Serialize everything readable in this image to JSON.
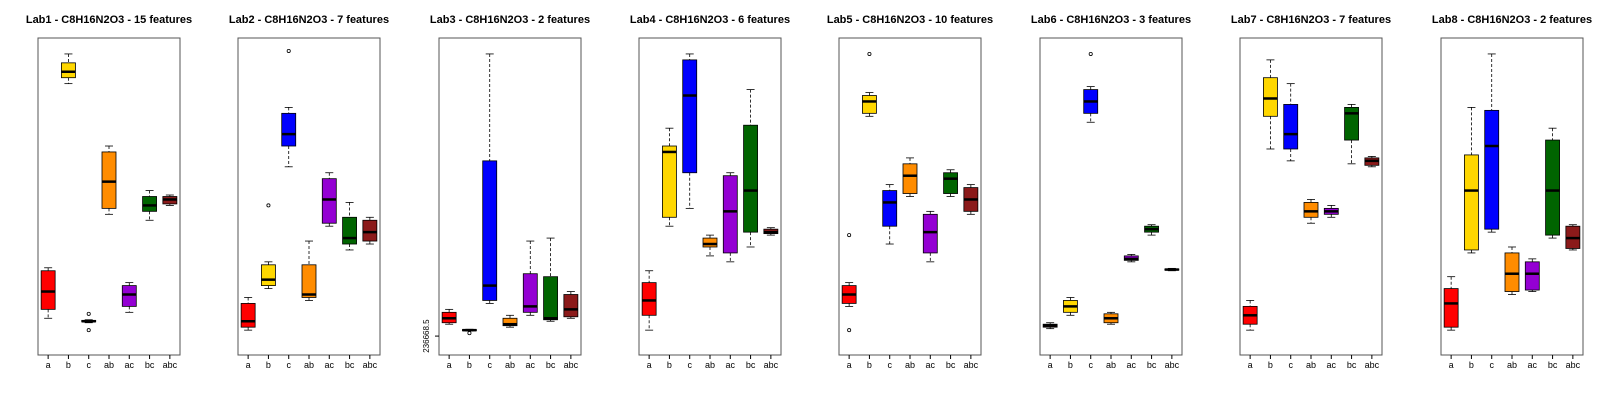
{
  "figure": {
    "categories": [
      "a",
      "b",
      "c",
      "ab",
      "ac",
      "bc",
      "abc"
    ],
    "colors": {
      "a": "#ff0000",
      "b": "#ffd700",
      "c": "#0000ff",
      "ab": "#ff8c00",
      "ac": "#9400d3",
      "bc": "#006400",
      "abc": "#8b1a1a"
    }
  },
  "chart_data": [
    {
      "type": "boxplot",
      "title": "Lab1 - C8H16N2O3 - 15 features",
      "categories": [
        "a",
        "b",
        "c",
        "ab",
        "ac",
        "bc",
        "abc"
      ],
      "ylim": [
        0,
        100
      ],
      "y_tick_labels": [],
      "boxes": [
        {
          "whislo": 9,
          "q1": 12,
          "med": 18,
          "q3": 25,
          "whishi": 26,
          "outliers": []
        },
        {
          "whislo": 88,
          "q1": 90,
          "med": 92,
          "q3": 95,
          "whishi": 98,
          "outliers": []
        },
        {
          "whislo": 7.5,
          "q1": 7.8,
          "med": 8,
          "q3": 8.3,
          "whishi": 8.5,
          "outliers": [
            10.5,
            5
          ]
        },
        {
          "whislo": 44,
          "q1": 46,
          "med": 55,
          "q3": 65,
          "whishi": 67,
          "outliers": []
        },
        {
          "whislo": 11,
          "q1": 13,
          "med": 17,
          "q3": 20,
          "whishi": 21,
          "outliers": []
        },
        {
          "whislo": 42,
          "q1": 45,
          "med": 47,
          "q3": 50,
          "whishi": 52,
          "outliers": []
        },
        {
          "whislo": 47,
          "q1": 47.5,
          "med": 49,
          "q3": 50,
          "whishi": 50.5,
          "outliers": []
        }
      ]
    },
    {
      "type": "boxplot",
      "title": "Lab2 - C8H16N2O3 - 7 features",
      "categories": [
        "a",
        "b",
        "c",
        "ab",
        "ac",
        "bc",
        "abc"
      ],
      "ylim": [
        0,
        100
      ],
      "y_tick_labels": [],
      "boxes": [
        {
          "whislo": 5,
          "q1": 6,
          "med": 8,
          "q3": 14,
          "whishi": 16,
          "outliers": []
        },
        {
          "whislo": 19,
          "q1": 20,
          "med": 22,
          "q3": 27,
          "whishi": 28,
          "outliers": [
            47
          ]
        },
        {
          "whislo": 60,
          "q1": 67,
          "med": 71,
          "q3": 78,
          "whishi": 80,
          "outliers": [
            99
          ]
        },
        {
          "whislo": 15,
          "q1": 16,
          "med": 17,
          "q3": 27,
          "whishi": 35,
          "outliers": []
        },
        {
          "whislo": 40,
          "q1": 41,
          "med": 49,
          "q3": 56,
          "whishi": 58,
          "outliers": []
        },
        {
          "whislo": 32,
          "q1": 34,
          "med": 36,
          "q3": 43,
          "whishi": 48,
          "outliers": []
        },
        {
          "whislo": 34,
          "q1": 35,
          "med": 38,
          "q3": 42,
          "whishi": 43,
          "outliers": []
        }
      ]
    },
    {
      "type": "boxplot",
      "title": "Lab3 - C8H16N2O3 - 2 features",
      "categories": [
        "a",
        "b",
        "c",
        "ab",
        "ac",
        "bc",
        "abc"
      ],
      "ylim": [
        0,
        100
      ],
      "y_tick_labels": [
        {
          "value": 3,
          "label": "236668.5"
        }
      ],
      "boxes": [
        {
          "whislo": 7,
          "q1": 7.5,
          "med": 9,
          "q3": 11,
          "whishi": 12,
          "outliers": []
        },
        {
          "whislo": 4.7,
          "q1": 4.8,
          "med": 5,
          "q3": 5.2,
          "whishi": 5.3,
          "outliers": [
            4
          ]
        },
        {
          "whislo": 14,
          "q1": 15,
          "med": 20,
          "q3": 62,
          "whishi": 98,
          "outliers": []
        },
        {
          "whislo": 6,
          "q1": 6.5,
          "med": 7,
          "q3": 9,
          "whishi": 10,
          "outliers": []
        },
        {
          "whislo": 10,
          "q1": 11,
          "med": 13,
          "q3": 24,
          "whishi": 35,
          "outliers": []
        },
        {
          "whislo": 8,
          "q1": 8.5,
          "med": 9,
          "q3": 23,
          "whishi": 36,
          "outliers": []
        },
        {
          "whislo": 9,
          "q1": 9.5,
          "med": 12,
          "q3": 17,
          "whishi": 18,
          "outliers": []
        }
      ]
    },
    {
      "type": "boxplot",
      "title": "Lab4 - C8H16N2O3 - 6 features",
      "categories": [
        "a",
        "b",
        "c",
        "ab",
        "ac",
        "bc",
        "abc"
      ],
      "ylim": [
        0,
        100
      ],
      "y_tick_labels": [],
      "boxes": [
        {
          "whislo": 5,
          "q1": 10,
          "med": 15,
          "q3": 21,
          "whishi": 25,
          "outliers": []
        },
        {
          "whislo": 40,
          "q1": 43,
          "med": 65,
          "q3": 67,
          "whishi": 73,
          "outliers": []
        },
        {
          "whislo": 46,
          "q1": 58,
          "med": 84,
          "q3": 96,
          "whishi": 98,
          "outliers": []
        },
        {
          "whislo": 30,
          "q1": 33,
          "med": 34,
          "q3": 36,
          "whishi": 37,
          "outliers": []
        },
        {
          "whislo": 28,
          "q1": 31,
          "med": 45,
          "q3": 57,
          "whishi": 58,
          "outliers": []
        },
        {
          "whislo": 33,
          "q1": 38,
          "med": 52,
          "q3": 74,
          "whishi": 86,
          "outliers": []
        },
        {
          "whislo": 37,
          "q1": 37.5,
          "med": 38,
          "q3": 39,
          "whishi": 39.5,
          "outliers": []
        }
      ]
    },
    {
      "type": "boxplot",
      "title": "Lab5 - C8H16N2O3 - 10 features",
      "categories": [
        "a",
        "b",
        "c",
        "ab",
        "ac",
        "bc",
        "abc"
      ],
      "ylim": [
        0,
        100
      ],
      "y_tick_labels": [],
      "boxes": [
        {
          "whislo": 13,
          "q1": 14,
          "med": 17,
          "q3": 20,
          "whishi": 21,
          "outliers": [
            37,
            5
          ]
        },
        {
          "whislo": 77,
          "q1": 78,
          "med": 82,
          "q3": 84,
          "whishi": 85,
          "outliers": [
            98
          ]
        },
        {
          "whislo": 34,
          "q1": 40,
          "med": 48,
          "q3": 52,
          "whishi": 54,
          "outliers": []
        },
        {
          "whislo": 50,
          "q1": 51,
          "med": 57,
          "q3": 61,
          "whishi": 63,
          "outliers": []
        },
        {
          "whislo": 28,
          "q1": 31,
          "med": 38,
          "q3": 44,
          "whishi": 45,
          "outliers": []
        },
        {
          "whislo": 50,
          "q1": 51,
          "med": 56,
          "q3": 58,
          "whishi": 59,
          "outliers": []
        },
        {
          "whislo": 44,
          "q1": 45,
          "med": 49,
          "q3": 53,
          "whishi": 54,
          "outliers": []
        }
      ]
    },
    {
      "type": "boxplot",
      "title": "Lab6 - C8H16N2O3 - 3 features",
      "categories": [
        "a",
        "b",
        "c",
        "ab",
        "ac",
        "bc",
        "abc"
      ],
      "ylim": [
        0,
        100
      ],
      "y_tick_labels": [],
      "boxes": [
        {
          "whislo": 5.5,
          "q1": 6,
          "med": 6.5,
          "q3": 7,
          "whishi": 7.5,
          "outliers": []
        },
        {
          "whislo": 10,
          "q1": 11,
          "med": 13,
          "q3": 15,
          "whishi": 16,
          "outliers": []
        },
        {
          "whislo": 75,
          "q1": 78,
          "med": 82,
          "q3": 86,
          "whishi": 87,
          "outliers": [
            98
          ]
        },
        {
          "whislo": 7,
          "q1": 7.5,
          "med": 9,
          "q3": 10.5,
          "whishi": 11,
          "outliers": []
        },
        {
          "whislo": 28,
          "q1": 28.5,
          "med": 29,
          "q3": 30,
          "whishi": 30.5,
          "outliers": []
        },
        {
          "whislo": 37,
          "q1": 38,
          "med": 39,
          "q3": 40,
          "whishi": 40.5,
          "outliers": []
        },
        {
          "whislo": 25,
          "q1": 25.2,
          "med": 25.4,
          "q3": 25.6,
          "whishi": 25.8,
          "outliers": []
        }
      ]
    },
    {
      "type": "boxplot",
      "title": "Lab7 - C8H16N2O3 - 7 features",
      "categories": [
        "a",
        "b",
        "c",
        "ab",
        "ac",
        "bc",
        "abc"
      ],
      "ylim": [
        0,
        100
      ],
      "y_tick_labels": [],
      "boxes": [
        {
          "whislo": 5,
          "q1": 7,
          "med": 10,
          "q3": 13,
          "whishi": 15,
          "outliers": []
        },
        {
          "whislo": 66,
          "q1": 77,
          "med": 83,
          "q3": 90,
          "whishi": 96,
          "outliers": []
        },
        {
          "whislo": 62,
          "q1": 66,
          "med": 71,
          "q3": 81,
          "whishi": 88,
          "outliers": []
        },
        {
          "whislo": 41,
          "q1": 43,
          "med": 45,
          "q3": 48,
          "whishi": 49,
          "outliers": []
        },
        {
          "whislo": 43,
          "q1": 44,
          "med": 45,
          "q3": 46,
          "whishi": 47,
          "outliers": []
        },
        {
          "whislo": 61,
          "q1": 69,
          "med": 78,
          "q3": 80,
          "whishi": 81,
          "outliers": []
        },
        {
          "whislo": 60,
          "q1": 60.5,
          "med": 62,
          "q3": 63,
          "whishi": 63.5,
          "outliers": []
        }
      ]
    },
    {
      "type": "boxplot",
      "title": "Lab8 - C8H16N2O3 - 2 features",
      "categories": [
        "a",
        "b",
        "c",
        "ab",
        "ac",
        "bc",
        "abc"
      ],
      "ylim": [
        0,
        100
      ],
      "y_tick_labels": [],
      "boxes": [
        {
          "whislo": 5,
          "q1": 6,
          "med": 14,
          "q3": 19,
          "whishi": 23,
          "outliers": []
        },
        {
          "whislo": 31,
          "q1": 32,
          "med": 52,
          "q3": 64,
          "whishi": 80,
          "outliers": []
        },
        {
          "whislo": 38,
          "q1": 39,
          "med": 67,
          "q3": 79,
          "whishi": 98,
          "outliers": []
        },
        {
          "whislo": 17,
          "q1": 18,
          "med": 24,
          "q3": 31,
          "whishi": 33,
          "outliers": []
        },
        {
          "whislo": 18,
          "q1": 18.5,
          "med": 24,
          "q3": 28,
          "whishi": 29,
          "outliers": []
        },
        {
          "whislo": 36,
          "q1": 37,
          "med": 52,
          "q3": 69,
          "whishi": 73,
          "outliers": []
        },
        {
          "whislo": 32,
          "q1": 32.5,
          "med": 36,
          "q3": 40,
          "whishi": 40.5,
          "outliers": []
        }
      ]
    }
  ]
}
